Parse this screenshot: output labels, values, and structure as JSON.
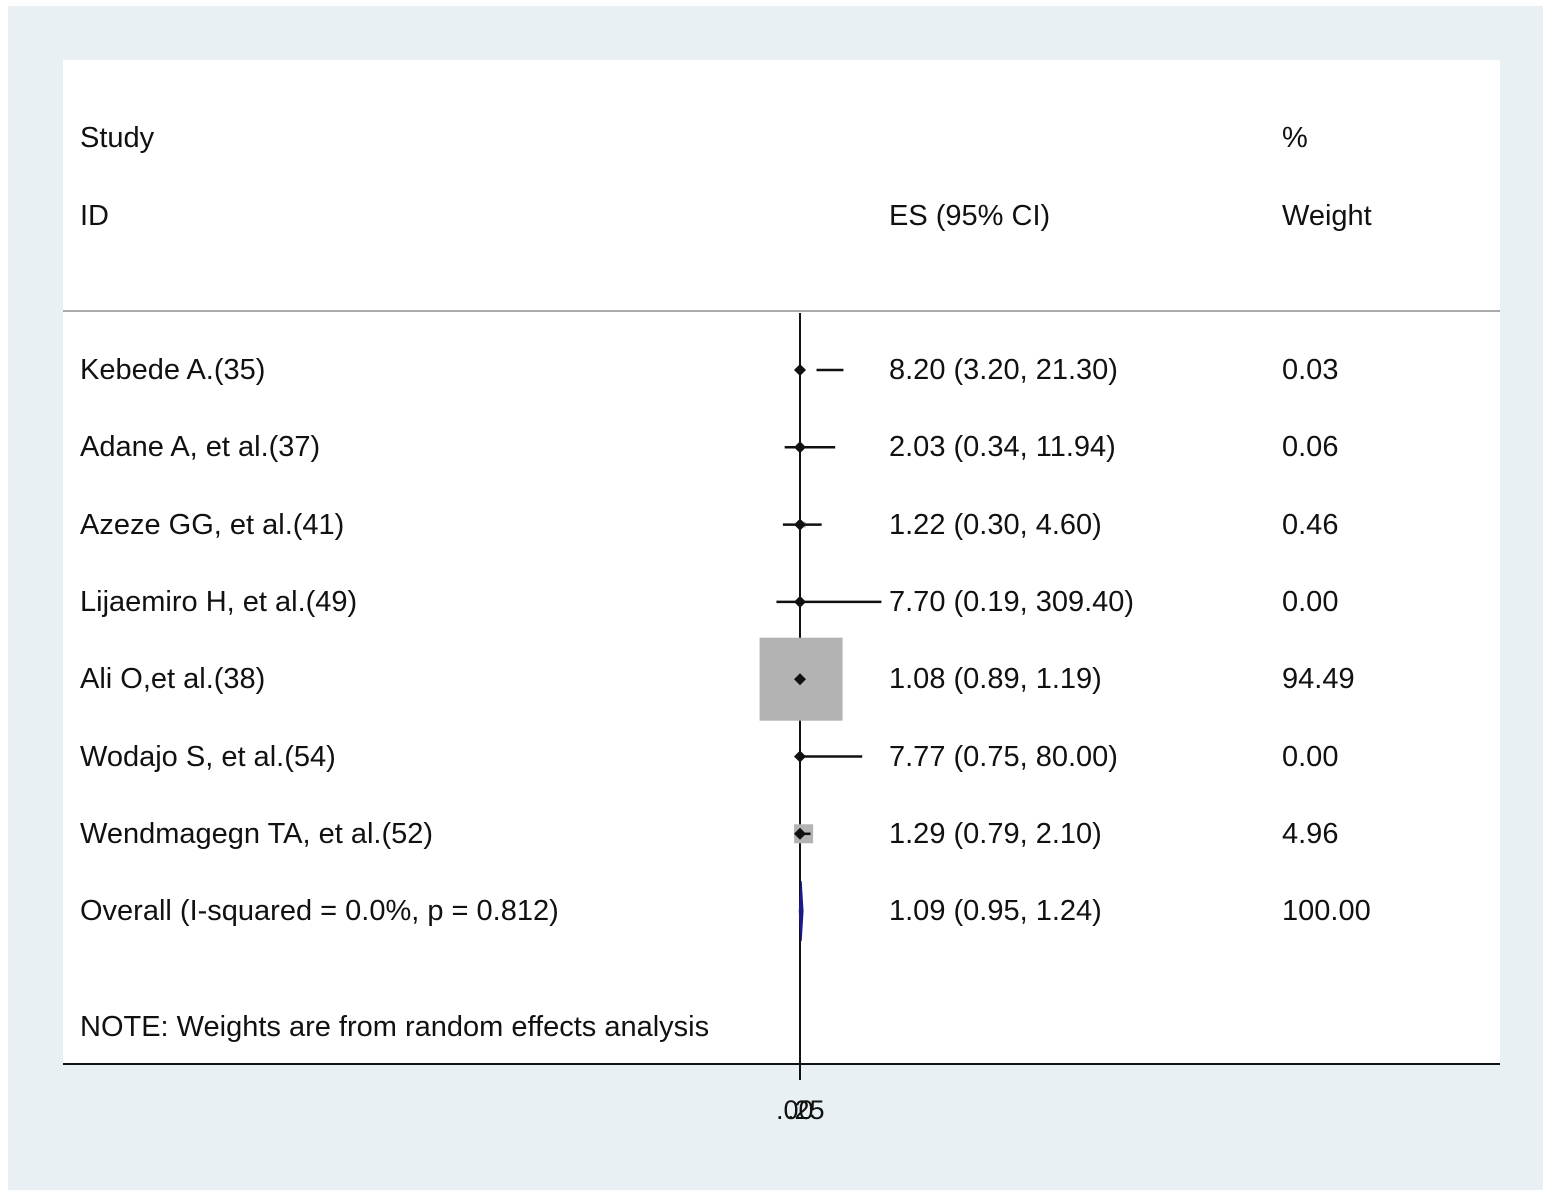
{
  "chart_data": {
    "type": "forest",
    "headers": {
      "study_line1": "Study",
      "study_line2": "ID",
      "es": "ES (95% CI)",
      "weight_line1": "%",
      "weight_line2": "Weight"
    },
    "studies": [
      {
        "id": "Kebede A.(35)",
        "es": 8.2,
        "lower": 3.2,
        "upper": 21.3,
        "es_text": "8.20 (3.20, 21.30)",
        "weight": 0.03,
        "weight_text": "0.03"
      },
      {
        "id": "Adane A, et al.(37)",
        "es": 2.03,
        "lower": 0.34,
        "upper": 11.94,
        "es_text": "2.03 (0.34, 11.94)",
        "weight": 0.06,
        "weight_text": "0.06"
      },
      {
        "id": "Azeze GG, et al.(41)",
        "es": 1.22,
        "lower": 0.3,
        "upper": 4.6,
        "es_text": "1.22 (0.30, 4.60)",
        "weight": 0.46,
        "weight_text": "0.46"
      },
      {
        "id": "Lijaemiro H, et al.(49)",
        "es": 7.7,
        "lower": 0.19,
        "upper": 309.4,
        "es_text": "7.70 (0.19, 309.40)",
        "weight": 0.0,
        "weight_text": "0.00"
      },
      {
        "id": "Ali O,et al.(38)",
        "es": 1.08,
        "lower": 0.89,
        "upper": 1.19,
        "es_text": "1.08 (0.89, 1.19)",
        "weight": 94.49,
        "weight_text": "94.49"
      },
      {
        "id": "Wodajo S, et al.(54)",
        "es": 7.77,
        "lower": 0.75,
        "upper": 80.0,
        "es_text": "7.77 (0.75, 80.00)",
        "weight": 0.0,
        "weight_text": "0.00"
      },
      {
        "id": "Wendmagegn TA, et al.(52)",
        "es": 1.29,
        "lower": 0.79,
        "upper": 2.1,
        "es_text": "1.29 (0.79, 2.10)",
        "weight": 4.96,
        "weight_text": "4.96"
      }
    ],
    "overall": {
      "id": "Overall  (I-squared = 0.0%, p = 0.812)",
      "es": 1.09,
      "lower": 0.95,
      "upper": 1.24,
      "es_text": "1.09 (0.95, 1.24)",
      "weight": 100.0,
      "weight_text": "100.00"
    },
    "note": "NOTE: Weights are from random effects analysis",
    "x_tick_labels": [
      ".00",
      ".25"
    ],
    "null_line": 1,
    "colors": {
      "box": "#b3b3b3",
      "marker": "#111111",
      "overall": "#1a1a8c",
      "background": "#e8f0f3"
    }
  }
}
